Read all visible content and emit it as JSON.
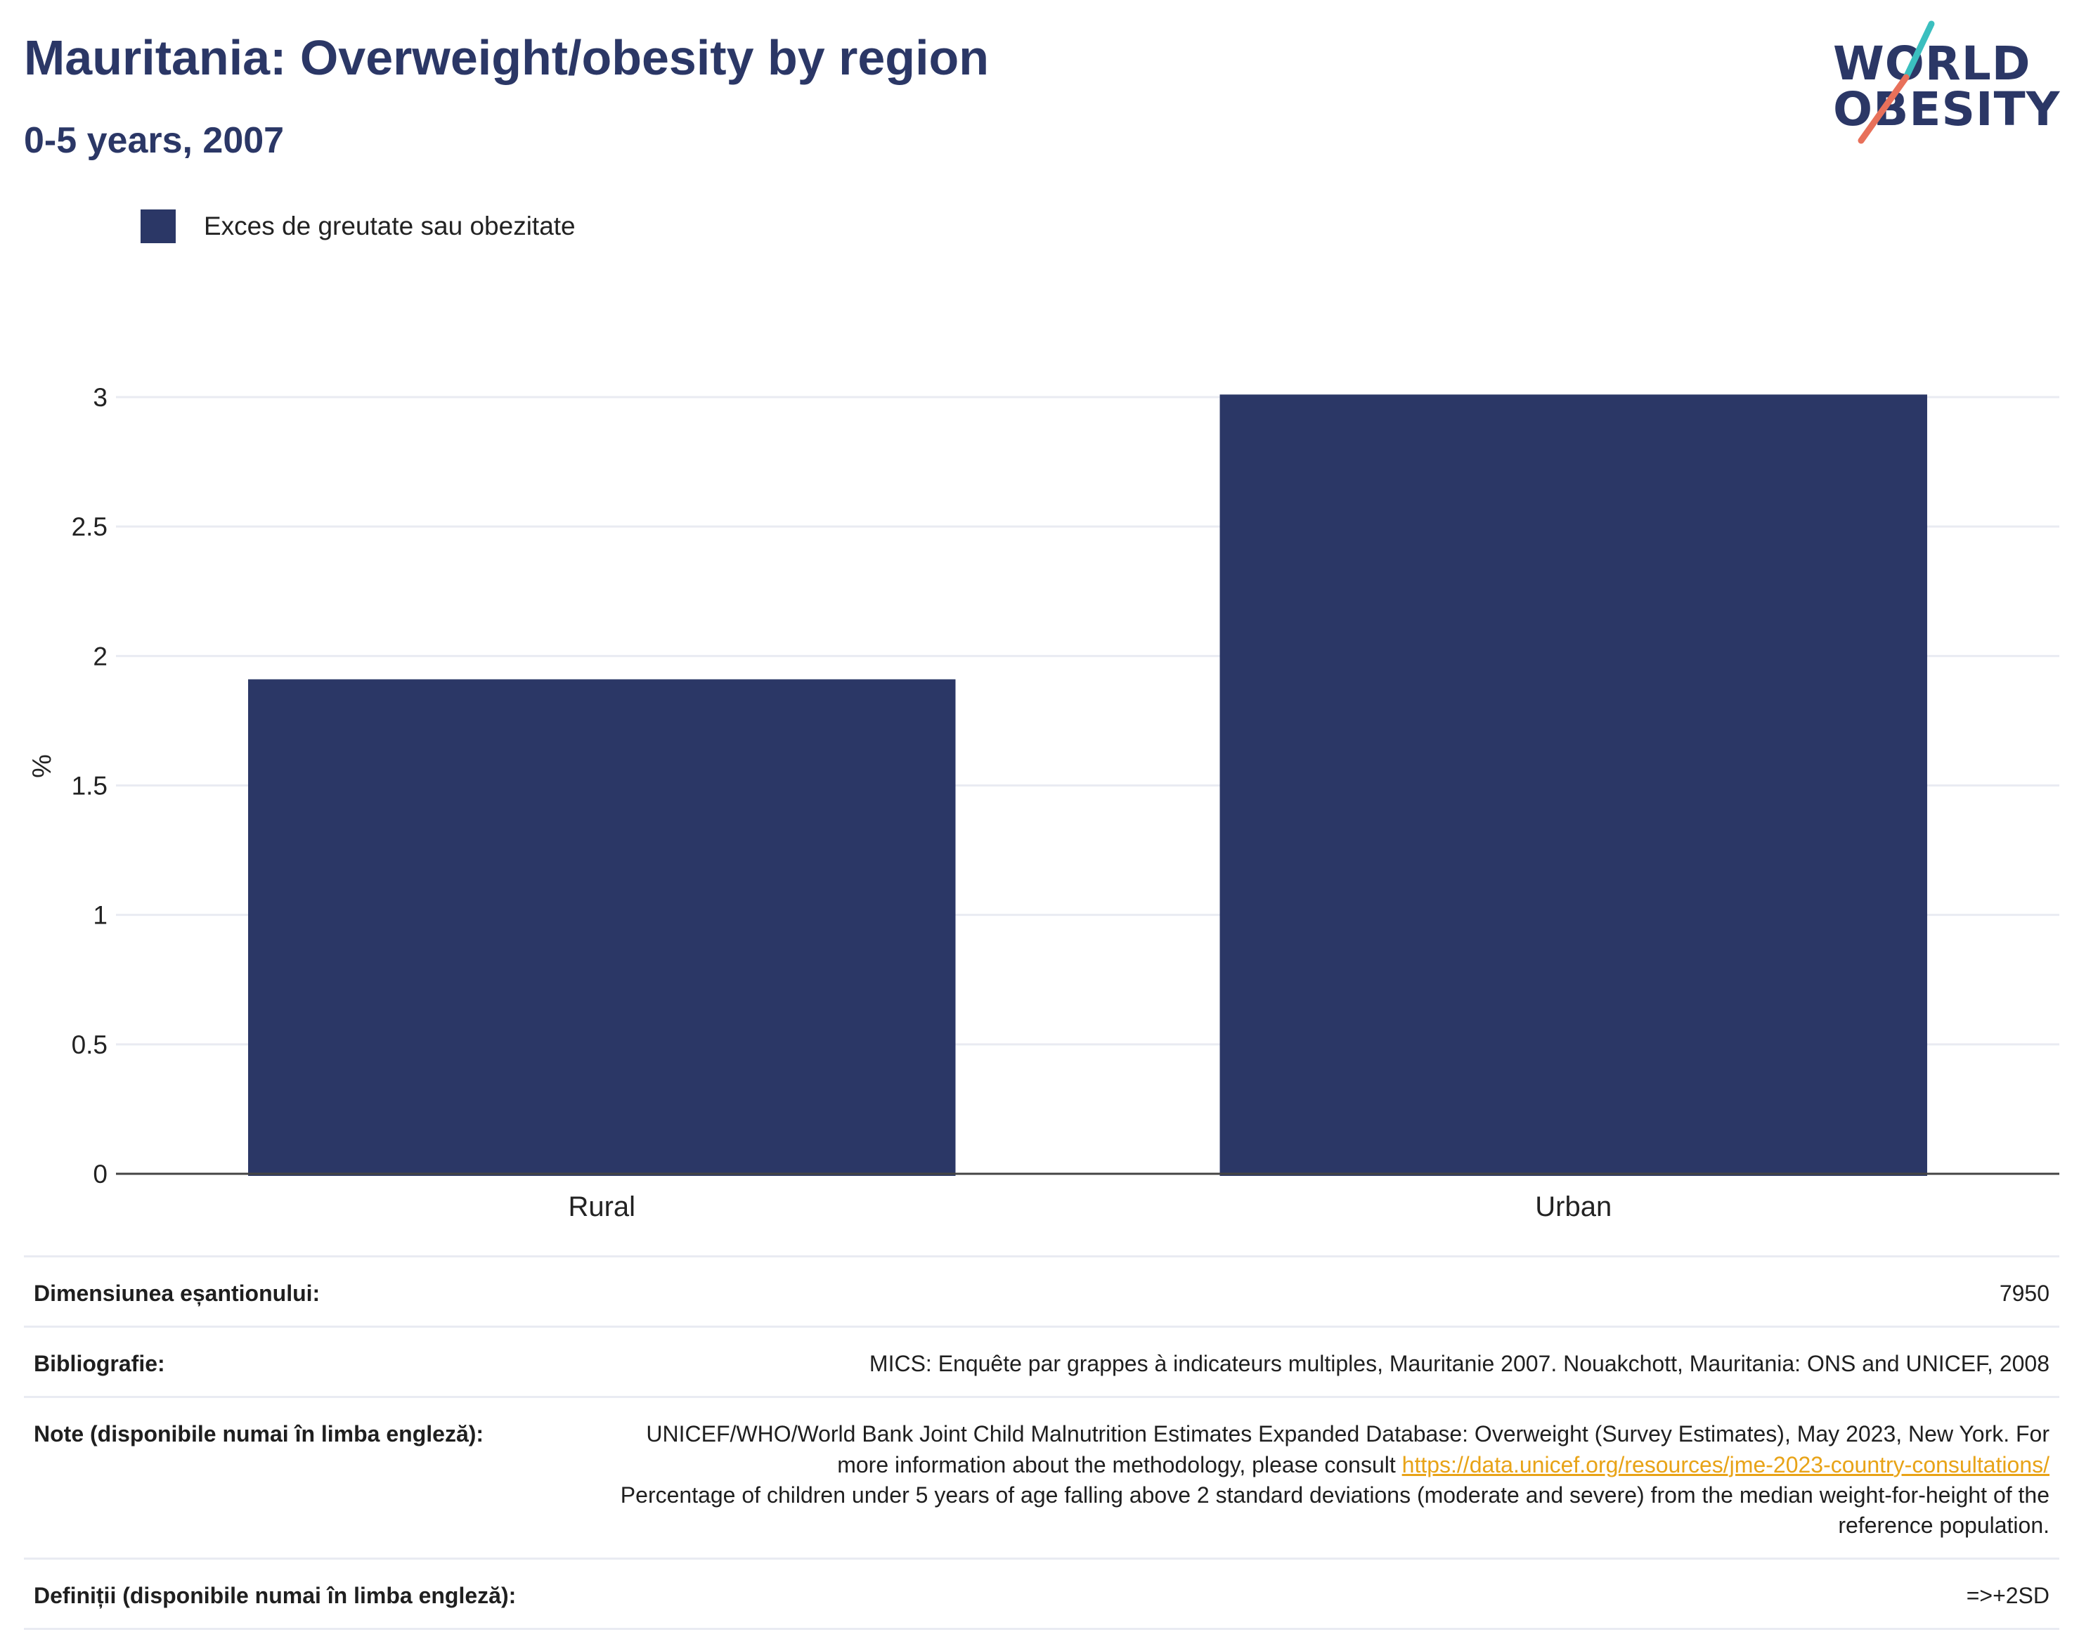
{
  "header": {
    "title": "Mauritania: Overweight/obesity by region",
    "subtitle": "0-5 years, 2007"
  },
  "logo": {
    "line1": "WORLD",
    "line2": "OBESITY",
    "accent_colors": [
      "#3bbfbf",
      "#e8705a"
    ]
  },
  "colors": {
    "bar": "#2b3766",
    "title": "#2b3766",
    "grid": "#e9ebf2",
    "axis": "#444444",
    "link": "#e8a317"
  },
  "legend": {
    "label": "Exces de greutate sau obezitate"
  },
  "chart_data": {
    "type": "bar",
    "categories": [
      "Rural",
      "Urban"
    ],
    "series": [
      {
        "name": "Exces de greutate sau obezitate",
        "values": [
          1.91,
          3.01
        ]
      }
    ],
    "ylabel": "%",
    "ylim": [
      0,
      3.05
    ],
    "yticks": [
      0,
      0.5,
      1,
      1.5,
      2,
      2.5,
      3
    ],
    "ytick_labels": [
      "0",
      "0.5",
      "1",
      "1.5",
      "2",
      "2.5",
      "3"
    ],
    "grid": true,
    "legend_position": "top-left"
  },
  "info": {
    "sample_label": "Dimensiunea eșantionului:",
    "sample_value": "7950",
    "biblio_label": "Bibliografie:",
    "biblio_value": "MICS: Enquête par grappes à indicateurs multiples, Mauritanie 2007. Nouakchott, Mauritania: ONS and UNICEF, 2008",
    "notes_label": "Note (disponibile numai în limba engleză):",
    "notes_text1": "UNICEF/WHO/World Bank Joint Child Malnutrition Estimates Expanded Database: Overweight (Survey Estimates), May 2023, New York. For more information about the methodology, please consult",
    "notes_link": "https://data.unicef.org/resources/jme-2023-country-consultations/",
    "notes_text2": "Percentage of children under 5 years of age falling above 2 standard deviations (moderate and severe) from the median weight-for-height of the reference population.",
    "definitions_label": "Definiții (disponibile numai în limba engleză):",
    "definitions_value": "=>+2SD"
  }
}
